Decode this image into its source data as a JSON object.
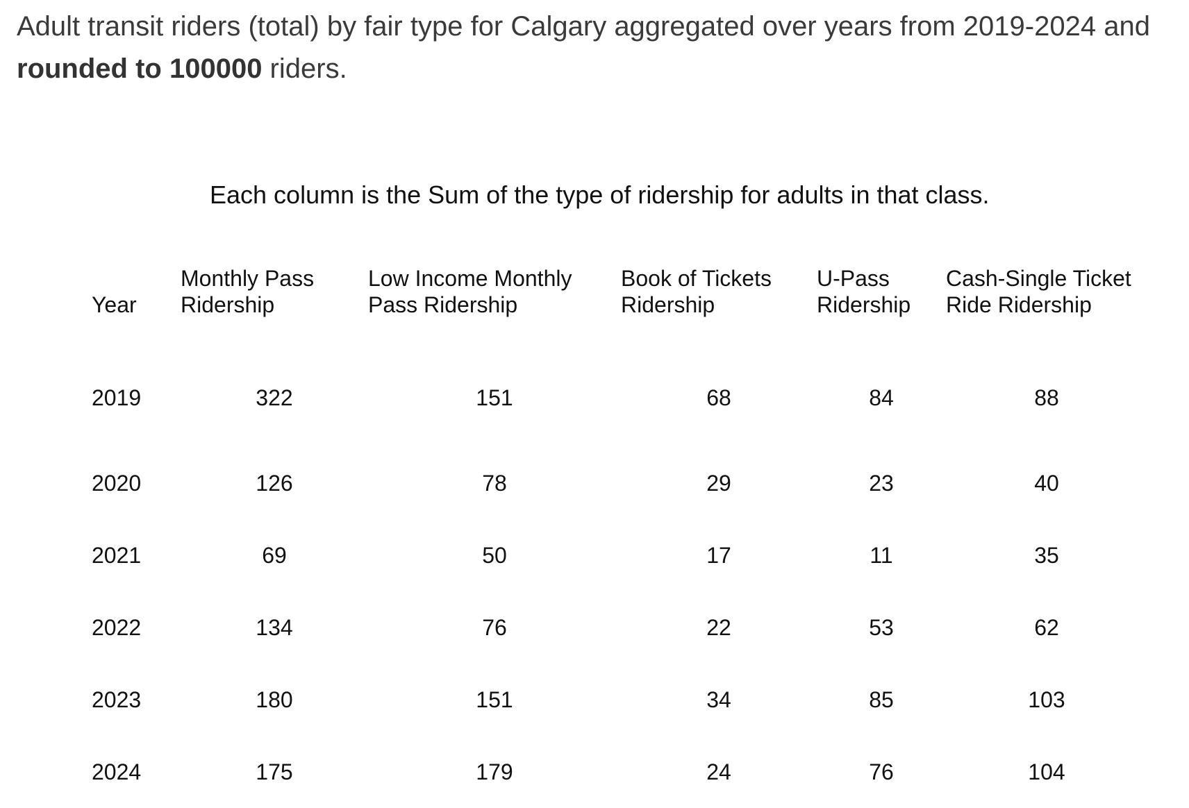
{
  "title": {
    "part1": "Adult transit riders (total) by fair type  for Calgary aggregated over years from 2019-2024 and ",
    "bold": "rounded to 100000",
    "part2": " riders."
  },
  "chart_data": {
    "type": "table",
    "subtitle": "Each column is the Sum of the type of ridership for adults in that class.",
    "columns": [
      {
        "key": "year",
        "label_lines": [
          "Year"
        ]
      },
      {
        "key": "monthly_pass",
        "label_lines": [
          "Monthly Pass",
          "Ridership"
        ]
      },
      {
        "key": "low_income_monthly_pass",
        "label_lines": [
          "Low Income Monthly",
          "Pass Ridership"
        ]
      },
      {
        "key": "book_of_tickets",
        "label_lines": [
          "Book of Tickets",
          "Ridership"
        ]
      },
      {
        "key": "u_pass",
        "label_lines": [
          "U-Pass",
          "Ridership"
        ]
      },
      {
        "key": "cash_single_ticket",
        "label_lines": [
          "Cash-Single Ticket",
          "Ride Ridership"
        ]
      }
    ],
    "rows": [
      {
        "year": "2019",
        "values": [
          322,
          151,
          68,
          84,
          88
        ]
      },
      {
        "year": "2020",
        "values": [
          126,
          78,
          29,
          23,
          40
        ]
      },
      {
        "year": "2021",
        "values": [
          69,
          50,
          17,
          11,
          35
        ]
      },
      {
        "year": "2022",
        "values": [
          134,
          76,
          22,
          53,
          62
        ]
      },
      {
        "year": "2023",
        "values": [
          180,
          151,
          34,
          85,
          103
        ]
      },
      {
        "year": "2024",
        "values": [
          175,
          179,
          24,
          76,
          104
        ]
      }
    ]
  }
}
